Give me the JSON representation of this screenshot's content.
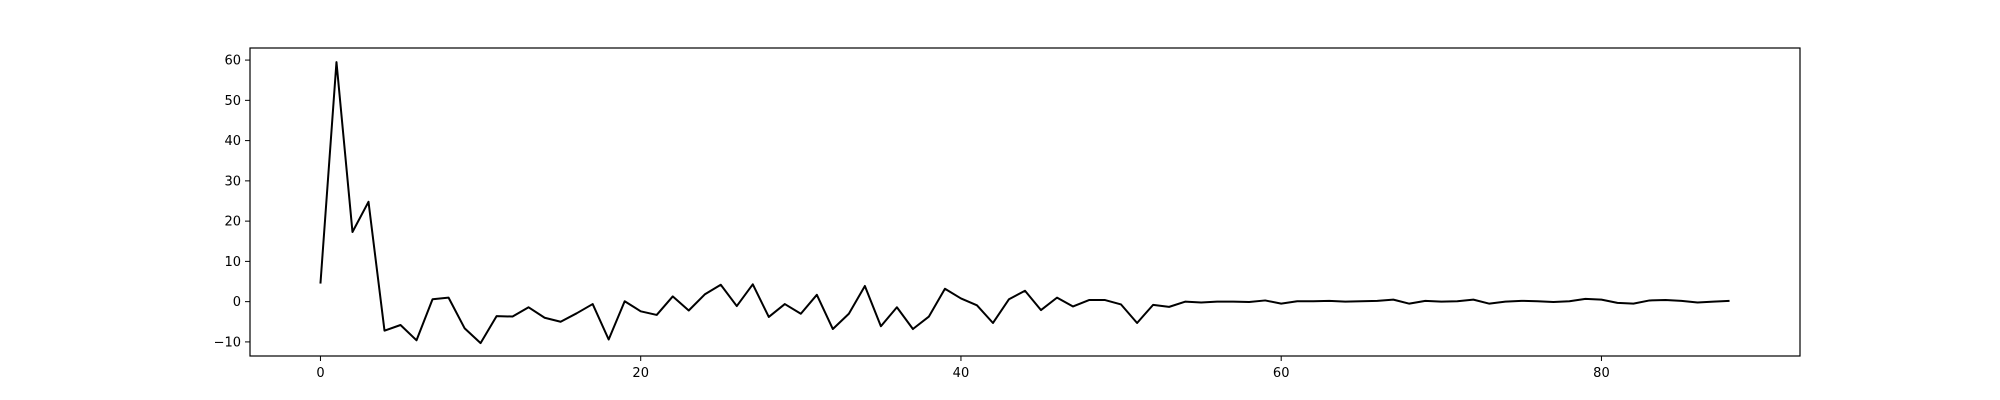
{
  "chart_data": {
    "type": "line",
    "title": "",
    "xlabel": "",
    "ylabel": "",
    "xlim": [
      -4.4,
      92.4
    ],
    "ylim": [
      -13.5,
      63.0
    ],
    "x_ticks": [
      0,
      20,
      40,
      60,
      80
    ],
    "x_tick_labels": [
      "0",
      "20",
      "40",
      "60",
      "80"
    ],
    "y_ticks": [
      -10,
      0,
      10,
      20,
      30,
      40,
      50,
      60
    ],
    "y_tick_labels": [
      "−10",
      "0",
      "10",
      "20",
      "30",
      "40",
      "50",
      "60"
    ],
    "grid": false,
    "legend": "none",
    "line_color": "#000000",
    "series": [
      {
        "values": [
          4.5,
          59.5,
          17.3,
          24.8,
          -7.2,
          -5.8,
          -9.6,
          0.6,
          1.0,
          -6.6,
          -10.3,
          -3.6,
          -3.7,
          -1.4,
          -4.0,
          -5.0,
          -2.9,
          -0.6,
          -9.4,
          0.1,
          -2.4,
          -3.3,
          1.3,
          -2.2,
          1.8,
          4.2,
          -1.1,
          4.3,
          -3.8,
          -0.6,
          -3.0,
          1.7,
          -6.8,
          -3.0,
          3.9,
          -6.1,
          -1.4,
          -6.8,
          -3.7,
          3.2,
          0.8,
          -0.9,
          -5.3,
          0.6,
          2.7,
          -2.1,
          1.0,
          -1.2,
          0.4,
          0.4,
          -0.7,
          -5.3,
          -0.8,
          -1.3,
          0.0,
          -0.2,
          0.0,
          0.0,
          -0.1,
          0.3,
          -0.5,
          0.1,
          0.1,
          0.2,
          0.0,
          0.1,
          0.2,
          0.5,
          -0.5,
          0.2,
          0.0,
          0.1,
          0.5,
          -0.5,
          0.0,
          0.2,
          0.1,
          -0.1,
          0.1,
          0.7,
          0.5,
          -0.3,
          -0.5,
          0.3,
          0.4,
          0.2,
          -0.2,
          0.0,
          0.2
        ]
      }
    ]
  }
}
